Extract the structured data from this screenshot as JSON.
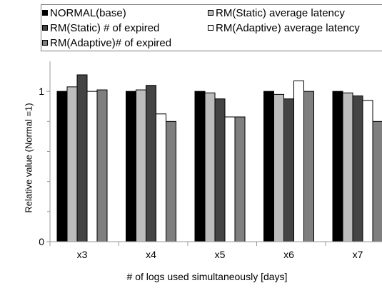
{
  "chart_data": {
    "type": "bar",
    "xlabel": "# of logs used simultaneously  [days]",
    "ylabel": "Relative value (Normal =1)",
    "categories": [
      "x3",
      "x4",
      "x5",
      "x6",
      "x7"
    ],
    "ylim": [
      0,
      1.2
    ],
    "yticks": [
      {
        "value": 0,
        "label": "0"
      },
      {
        "value": 1,
        "label": "1"
      }
    ],
    "grid": false,
    "legend_position": "top",
    "series": [
      {
        "name": "NORMAL(base)",
        "color": "#000000",
        "values": [
          1.0,
          1.0,
          1.0,
          1.0,
          1.0
        ]
      },
      {
        "name": "RM(Static) average latency",
        "color": "#bdbdbd",
        "values": [
          1.03,
          1.01,
          0.99,
          0.98,
          0.99
        ]
      },
      {
        "name": "RM(Static) # of expired",
        "color": "#444444",
        "values": [
          1.11,
          1.04,
          0.95,
          0.95,
          0.97
        ]
      },
      {
        "name": "RM(Adaptive) average latency",
        "color": "#ffffff",
        "values": [
          1.0,
          0.85,
          0.83,
          1.07,
          0.94
        ]
      },
      {
        "name": "RM(Adaptive)# of expired",
        "color": "#7f7f7f",
        "values": [
          1.01,
          0.8,
          0.83,
          1.0,
          0.8
        ]
      }
    ]
  }
}
